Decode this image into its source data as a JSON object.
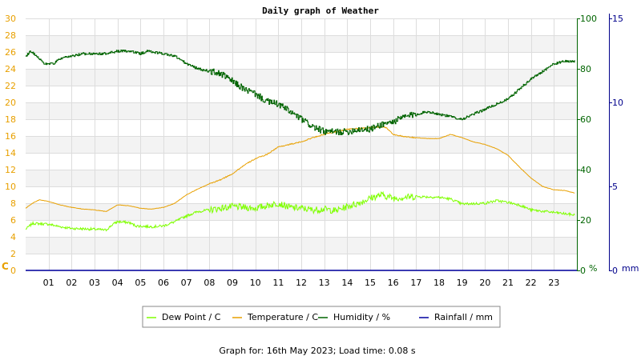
{
  "chart_data": {
    "type": "line",
    "title": "Daily graph of Weather",
    "x_ticks": [
      "01",
      "02",
      "03",
      "04",
      "05",
      "06",
      "07",
      "08",
      "09",
      "10",
      "11",
      "12",
      "13",
      "14",
      "15",
      "16",
      "17",
      "18",
      "19",
      "20",
      "21",
      "22",
      "23"
    ],
    "x_range": [
      0,
      24
    ],
    "axes": {
      "temperature": {
        "unit": "C",
        "range": [
          0,
          30
        ],
        "ticks": [
          0,
          2,
          4,
          6,
          8,
          10,
          12,
          14,
          16,
          18,
          20,
          22,
          24,
          26,
          28,
          30
        ],
        "color": "#e8a000",
        "side": "left"
      },
      "humidity": {
        "unit": "%",
        "range": [
          0,
          100
        ],
        "ticks": [
          0,
          20,
          40,
          60,
          80,
          100
        ],
        "color": "#006400",
        "side": "right"
      },
      "rainfall": {
        "unit": "mm",
        "range": [
          0,
          15
        ],
        "ticks": [
          0,
          5,
          10,
          15
        ],
        "color": "#00008b",
        "side": "right-outer"
      }
    },
    "grid": true,
    "legend_position": "bottom",
    "series": [
      {
        "name": "Dew Point / C",
        "axis": "temperature",
        "color": "#7fff00",
        "jitter": 0.25,
        "points": [
          [
            0,
            4.9
          ],
          [
            0.3,
            5.6
          ],
          [
            1,
            5.5
          ],
          [
            1.5,
            5.2
          ],
          [
            2,
            5.0
          ],
          [
            3,
            4.9
          ],
          [
            3.5,
            4.8
          ],
          [
            3.8,
            5.5
          ],
          [
            4,
            5.8
          ],
          [
            4.5,
            5.7
          ],
          [
            4.8,
            5.3
          ],
          [
            5.5,
            5.2
          ],
          [
            6,
            5.3
          ],
          [
            6.5,
            5.8
          ],
          [
            7,
            6.5
          ],
          [
            7.5,
            7.0
          ],
          [
            8,
            7.2
          ],
          [
            9,
            7.6
          ],
          [
            10,
            7.4
          ],
          [
            11,
            8.0
          ],
          [
            11.5,
            7.5
          ],
          [
            12,
            7.4
          ],
          [
            12.5,
            7.2
          ],
          [
            13,
            7.3
          ],
          [
            13.5,
            7.1
          ],
          [
            14,
            7.6
          ],
          [
            14.5,
            8.0
          ],
          [
            15,
            8.6
          ],
          [
            15.5,
            9.0
          ],
          [
            16,
            8.6
          ],
          [
            17,
            8.8
          ],
          [
            18,
            8.7
          ],
          [
            18.5,
            8.5
          ],
          [
            19,
            7.9
          ],
          [
            20,
            8.0
          ],
          [
            20.5,
            8.3
          ],
          [
            21,
            8.1
          ],
          [
            21.5,
            7.8
          ],
          [
            22,
            7.2
          ],
          [
            23,
            6.9
          ],
          [
            23.9,
            6.6
          ]
        ]
      },
      {
        "name": "Temperature / C",
        "axis": "temperature",
        "color": "#e8a000",
        "jitter": 0.04,
        "points": [
          [
            0,
            7.4
          ],
          [
            0.3,
            8.0
          ],
          [
            0.6,
            8.4
          ],
          [
            1,
            8.2
          ],
          [
            1.5,
            7.8
          ],
          [
            2,
            7.5
          ],
          [
            2.5,
            7.3
          ],
          [
            3,
            7.2
          ],
          [
            3.5,
            7.0
          ],
          [
            4,
            7.8
          ],
          [
            4.5,
            7.7
          ],
          [
            5,
            7.4
          ],
          [
            5.5,
            7.3
          ],
          [
            6,
            7.5
          ],
          [
            6.5,
            8.0
          ],
          [
            7,
            9.0
          ],
          [
            7.5,
            9.7
          ],
          [
            8,
            10.3
          ],
          [
            8.5,
            10.8
          ],
          [
            9,
            11.5
          ],
          [
            9.5,
            12.5
          ],
          [
            10,
            13.3
          ],
          [
            10.5,
            13.8
          ],
          [
            11,
            14.7
          ],
          [
            11.5,
            15.0
          ],
          [
            12,
            15.3
          ],
          [
            12.5,
            15.8
          ],
          [
            13,
            16.2
          ],
          [
            13.5,
            16.5
          ],
          [
            14,
            16.8
          ],
          [
            14.5,
            16.9
          ],
          [
            15,
            17.0
          ],
          [
            15.5,
            17.1
          ],
          [
            15.7,
            17.0
          ],
          [
            16,
            16.2
          ],
          [
            16.5,
            15.9
          ],
          [
            17,
            15.8
          ],
          [
            17.5,
            15.7
          ],
          [
            18,
            15.7
          ],
          [
            18.5,
            16.2
          ],
          [
            19,
            15.8
          ],
          [
            19.5,
            15.3
          ],
          [
            20,
            15.0
          ],
          [
            20.5,
            14.5
          ],
          [
            21,
            13.7
          ],
          [
            21.5,
            12.3
          ],
          [
            22,
            11.0
          ],
          [
            22.5,
            10.0
          ],
          [
            23,
            9.6
          ],
          [
            23.5,
            9.5
          ],
          [
            23.9,
            9.2
          ]
        ]
      },
      {
        "name": "Humidity / %",
        "axis": "humidity",
        "color": "#006400",
        "jitter": 0.8,
        "step": true,
        "points": [
          [
            0,
            85
          ],
          [
            0.2,
            87
          ],
          [
            0.5,
            85
          ],
          [
            0.8,
            82
          ],
          [
            1.2,
            82
          ],
          [
            1.5,
            84
          ],
          [
            2,
            85
          ],
          [
            2.5,
            86
          ],
          [
            3,
            86
          ],
          [
            3.5,
            86
          ],
          [
            4,
            87
          ],
          [
            4.5,
            87
          ],
          [
            5,
            86
          ],
          [
            5.3,
            87
          ],
          [
            6,
            86
          ],
          [
            6.5,
            85
          ],
          [
            7,
            82
          ],
          [
            7.5,
            80
          ],
          [
            8,
            79
          ],
          [
            8.5,
            78
          ],
          [
            9,
            75
          ],
          [
            9.5,
            72
          ],
          [
            10,
            70
          ],
          [
            10.5,
            67
          ],
          [
            11,
            66
          ],
          [
            11.5,
            63
          ],
          [
            12,
            60
          ],
          [
            12.5,
            57
          ],
          [
            13,
            55
          ],
          [
            13.5,
            55
          ],
          [
            14,
            55
          ],
          [
            14.5,
            56
          ],
          [
            15,
            56
          ],
          [
            15.5,
            58
          ],
          [
            16,
            59
          ],
          [
            16.5,
            61
          ],
          [
            17,
            62
          ],
          [
            17.5,
            63
          ],
          [
            18,
            62
          ],
          [
            18.5,
            61
          ],
          [
            19,
            60
          ],
          [
            19.5,
            62
          ],
          [
            20,
            64
          ],
          [
            20.5,
            66
          ],
          [
            21,
            68
          ],
          [
            21.5,
            72
          ],
          [
            22,
            76
          ],
          [
            22.5,
            79
          ],
          [
            23,
            82
          ],
          [
            23.5,
            83
          ],
          [
            23.9,
            83
          ]
        ]
      },
      {
        "name": "Rainfall / mm",
        "axis": "rainfall",
        "color": "#0000a0",
        "jitter": 0,
        "points": [
          [
            0,
            0
          ],
          [
            24,
            0
          ]
        ]
      }
    ]
  },
  "footer": "Graph for: 16th May 2023; Load time: 0.08 s"
}
